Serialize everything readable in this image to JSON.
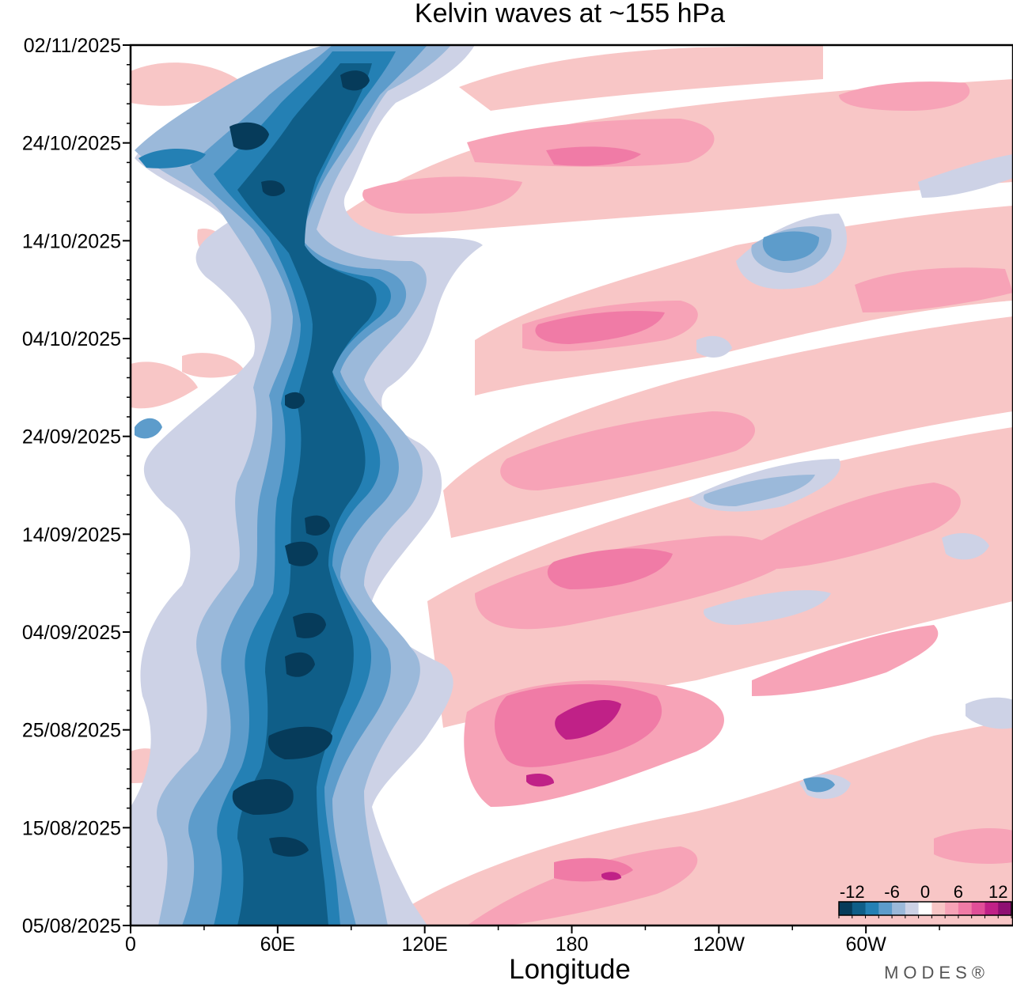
{
  "chart_data": {
    "type": "heatmap",
    "title": "Kelvin waves at ~155 hPa",
    "xlabel": "Longitude",
    "ylabel": "",
    "x_tick_labels": [
      "0",
      "60E",
      "120E",
      "180",
      "120W",
      "60W"
    ],
    "x_tick_values_deg": [
      0,
      60,
      120,
      180,
      240,
      300
    ],
    "xlim_deg": [
      0,
      360
    ],
    "y_tick_labels": [
      "02/11/2025",
      "24/10/2025",
      "14/10/2025",
      "04/10/2025",
      "24/09/2025",
      "14/09/2025",
      "04/09/2025",
      "25/08/2025",
      "15/08/2025",
      "05/08/2025"
    ],
    "ylim": [
      "05/08/2025",
      "02/11/2025"
    ],
    "colorbar": {
      "tick_labels": [
        "-12",
        "-6",
        "0",
        "6",
        "12"
      ],
      "levels": [
        -14,
        -12,
        -10,
        -8,
        -6,
        -4,
        -2,
        2,
        4,
        6,
        8,
        10,
        12,
        14
      ],
      "colors": [
        "#063b5a",
        "#0f5e88",
        "#2480b4",
        "#5d9ccb",
        "#9bb9da",
        "#cdd2e6",
        "#ffffff",
        "#f8c6c6",
        "#f7a3b7",
        "#f07ba6",
        "#e04f98",
        "#c02187",
        "#8f0f72"
      ]
    },
    "series": [
      {
        "name": "negative anomaly band (blue)",
        "description_levels": "strongest -14 near 60E-90E",
        "center_lon_deg": [
          80,
          72,
          70,
          60,
          62,
          65,
          68,
          70,
          75,
          75,
          70,
          62,
          60,
          80
        ],
        "day_offsets": [
          0,
          7,
          14,
          21,
          28,
          35,
          42,
          49,
          56,
          63,
          70,
          77,
          84,
          89
        ]
      },
      {
        "name": "positive anomaly bands (pink)",
        "description_levels": "strongest +12 near 180-200E late August",
        "eastward_propagation": true
      }
    ],
    "contour_fields": [
      {
        "level": -2,
        "color": "#cdd2e6",
        "shapes": [
          [
            40,
            0,
            140,
            90
          ]
        ]
      },
      {
        "level": 2,
        "color": "#f8c6c6",
        "shapes": [
          [
            130,
            0,
            360,
            90
          ]
        ]
      }
    ]
  },
  "branding": {
    "logo_text": "MODES®"
  }
}
